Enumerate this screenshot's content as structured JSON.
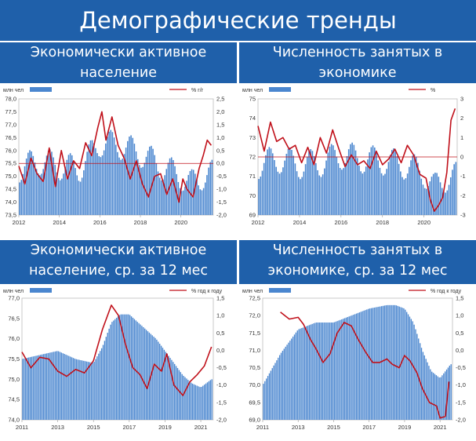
{
  "page": {
    "title": "Демографические тренды"
  },
  "colors": {
    "header_bg": "#1f60aa",
    "bar": "#4a86cf",
    "line": "#c0101a",
    "zero_line": "#c0101a"
  },
  "chart_data": [
    {
      "type": "bar+line",
      "title_lines": [
        "Экономически активное",
        "население"
      ],
      "left_unit": "млн чел",
      "right_unit": "% г/г",
      "ylim_left": [
        73.5,
        78.0
      ],
      "ylim_right": [
        -2.0,
        2.5
      ],
      "yticks_left": [
        "78,0",
        "77,5",
        "77,0",
        "76,5",
        "76,0",
        "75,5",
        "75,0",
        "74,5",
        "74,0",
        "73,5"
      ],
      "yticks_right": [
        "2,5",
        "2,0",
        "1,5",
        "1,0",
        "0,5",
        "0,0",
        "-0,5",
        "-1,0",
        "-1,5",
        "-2,0"
      ],
      "xlim": [
        2012,
        2021.6
      ],
      "xticks": [
        "2012",
        "2014",
        "2016",
        "2018",
        "2020"
      ],
      "zero_line": 0,
      "bars": {
        "x_start": 2012,
        "step": 0.0833,
        "seasonal_amp": 0.55,
        "trend_x": [
          2012,
          2013,
          2014,
          2015,
          2016,
          2017,
          2018,
          2019,
          2020,
          2020.5,
          2021,
          2021.6
        ],
        "trend_y": [
          75.3,
          75.6,
          75.4,
          75.3,
          76.3,
          76.2,
          75.9,
          75.4,
          75.0,
          74.7,
          75.0,
          75.1
        ]
      },
      "line": {
        "x": [
          2012,
          2012.3,
          2012.6,
          2012.9,
          2013.2,
          2013.5,
          2013.8,
          2014.1,
          2014.4,
          2014.7,
          2015.0,
          2015.3,
          2015.6,
          2015.9,
          2016.1,
          2016.3,
          2016.6,
          2016.9,
          2017.2,
          2017.5,
          2017.8,
          2018.1,
          2018.4,
          2018.7,
          2019.0,
          2019.3,
          2019.6,
          2019.9,
          2020.1,
          2020.3,
          2020.6,
          2020.9,
          2021.1,
          2021.3,
          2021.5
        ],
        "y": [
          -0.1,
          -0.8,
          0.2,
          -0.4,
          -0.7,
          0.6,
          -0.9,
          0.5,
          -0.6,
          0.1,
          -0.2,
          0.8,
          0.3,
          1.4,
          2.0,
          0.9,
          1.8,
          0.7,
          0.2,
          -0.6,
          0.1,
          -0.8,
          -1.3,
          -0.5,
          -0.4,
          -1.2,
          -0.6,
          -1.5,
          -0.6,
          -1.0,
          -1.3,
          -0.2,
          0.3,
          0.9,
          0.7
        ]
      }
    },
    {
      "type": "bar+line",
      "title_lines": [
        "Численность занятых в",
        "экономике"
      ],
      "left_unit": "млн чел",
      "right_unit": "%",
      "ylim_left": [
        69,
        75
      ],
      "ylim_right": [
        -3,
        3
      ],
      "yticks_left": [
        "75",
        "74",
        "73",
        "72",
        "71",
        "70",
        "69"
      ],
      "yticks_right": [
        "3",
        "2",
        "1",
        "0",
        "-1",
        "-2",
        "-3"
      ],
      "xlim": [
        2012,
        2021.6
      ],
      "xticks": [
        "2012",
        "2014",
        "2016",
        "2018",
        "2020"
      ],
      "zero_line": 0,
      "bars": {
        "x_start": 2012,
        "step": 0.0833,
        "seasonal_amp": 0.75,
        "trend_x": [
          2012,
          2013,
          2014,
          2015,
          2016,
          2017,
          2018,
          2019,
          2020,
          2020.5,
          2021,
          2021.6
        ],
        "trend_y": [
          71.6,
          71.9,
          71.6,
          71.7,
          72.1,
          71.9,
          71.8,
          71.6,
          71.2,
          70.4,
          70.9,
          71.0
        ]
      },
      "line": {
        "x": [
          2012,
          2012.3,
          2012.6,
          2012.9,
          2013.2,
          2013.5,
          2013.8,
          2014.1,
          2014.4,
          2014.7,
          2015.0,
          2015.3,
          2015.6,
          2015.9,
          2016.2,
          2016.5,
          2016.8,
          2017.1,
          2017.4,
          2017.7,
          2018.0,
          2018.3,
          2018.6,
          2018.9,
          2019.2,
          2019.5,
          2019.8,
          2020.1,
          2020.3,
          2020.5,
          2020.7,
          2020.9,
          2021.1,
          2021.3,
          2021.5
        ],
        "y": [
          1.6,
          0.3,
          1.8,
          0.8,
          1.0,
          0.4,
          0.6,
          -0.3,
          0.5,
          -0.4,
          1.0,
          0.2,
          1.4,
          0.4,
          -0.5,
          0.1,
          -0.4,
          -0.2,
          -0.6,
          0.3,
          -0.4,
          -0.1,
          0.4,
          -0.3,
          0.6,
          0.1,
          -0.9,
          -1.1,
          -2.2,
          -2.8,
          -2.5,
          -2.1,
          -0.8,
          1.9,
          2.5
        ]
      }
    },
    {
      "type": "bar+line",
      "title_lines": [
        "Экономически активное",
        "население, ср. за 12 мес"
      ],
      "left_unit": "млн чел",
      "right_unit": "% год к году",
      "ylim_left": [
        74.0,
        77.0
      ],
      "ylim_right": [
        -2.0,
        1.5
      ],
      "yticks_left": [
        "77,0",
        "76,5",
        "76,0",
        "75,5",
        "75,0",
        "74,5",
        "74,0"
      ],
      "yticks_right": [
        "1,5",
        "1,0",
        "0,5",
        "0,0",
        "-0,5",
        "-1,0",
        "-1,5",
        "-2,0"
      ],
      "xlim": [
        2011,
        2021.7
      ],
      "xticks": [
        "2011",
        "2013",
        "2015",
        "2017",
        "2019",
        "2021"
      ],
      "zero_line": null,
      "bars": {
        "x_start": 2011,
        "step": 0.0833,
        "seasonal_amp": 0,
        "trend_x": [
          2011,
          2012,
          2013,
          2014,
          2015,
          2015.5,
          2016,
          2016.5,
          2017,
          2018,
          2018.5,
          2019,
          2019.5,
          2020,
          2020.5,
          2021,
          2021.6
        ],
        "trend_y": [
          75.5,
          75.6,
          75.7,
          75.5,
          75.4,
          75.8,
          76.4,
          76.6,
          76.6,
          76.2,
          76.0,
          75.7,
          75.4,
          75.1,
          74.9,
          74.8,
          75.0
        ]
      },
      "line": {
        "x": [
          2011,
          2011.5,
          2012,
          2012.5,
          2013,
          2013.5,
          2014,
          2014.5,
          2015,
          2015.5,
          2016,
          2016.4,
          2016.8,
          2017.2,
          2017.6,
          2018,
          2018.4,
          2018.8,
          2019.1,
          2019.5,
          2020,
          2020.4,
          2020.8,
          2021.2,
          2021.6
        ],
        "y": [
          -0.05,
          -0.5,
          -0.2,
          -0.25,
          -0.6,
          -0.75,
          -0.55,
          -0.65,
          -0.3,
          0.6,
          1.3,
          1.0,
          0.15,
          -0.5,
          -0.7,
          -1.1,
          -0.4,
          -0.6,
          -0.1,
          -1.0,
          -1.3,
          -0.9,
          -0.7,
          -0.45,
          0.1
        ]
      }
    },
    {
      "type": "bar+line",
      "title_lines": [
        "Численность занятых в",
        "экономике, ср. за 12 мес"
      ],
      "left_unit": "млн чел",
      "right_unit": "% год к году",
      "ylim_left": [
        69.0,
        72.5
      ],
      "ylim_right": [
        -2.0,
        1.5
      ],
      "yticks_left": [
        "72,5",
        "72,0",
        "71,5",
        "71,0",
        "70,5",
        "70,0",
        "69,5",
        "69,0"
      ],
      "yticks_right": [
        "1,5",
        "1,0",
        "0,5",
        "0,0",
        "-0,5",
        "-1,0",
        "-1,5",
        "-2,0"
      ],
      "xlim": [
        2011,
        2021.7
      ],
      "xticks": [
        "2011",
        "2013",
        "2015",
        "2017",
        "2019",
        "2021"
      ],
      "zero_line": null,
      "bars": {
        "x_start": 2011,
        "step": 0.0833,
        "seasonal_amp": 0,
        "trend_x": [
          2011,
          2012,
          2013,
          2014,
          2015,
          2016,
          2017,
          2018,
          2018.5,
          2019,
          2019.5,
          2020,
          2020.5,
          2021,
          2021.6
        ],
        "trend_y": [
          70.0,
          70.9,
          71.6,
          71.8,
          71.8,
          72.0,
          72.2,
          72.3,
          72.3,
          72.2,
          71.8,
          71.0,
          70.4,
          70.2,
          70.6
        ]
      },
      "line": {
        "x": [
          2012,
          2012.5,
          2013,
          2013.3,
          2013.7,
          2014,
          2014.4,
          2014.8,
          2015.2,
          2015.6,
          2016,
          2016.4,
          2016.8,
          2017.2,
          2017.6,
          2018,
          2018.3,
          2018.7,
          2019,
          2019.3,
          2019.7,
          2020,
          2020.4,
          2020.8,
          2021,
          2021.3,
          2021.5
        ],
        "y": [
          1.1,
          0.9,
          0.95,
          0.75,
          0.3,
          0.05,
          -0.35,
          -0.1,
          0.5,
          0.8,
          0.7,
          0.3,
          -0.05,
          -0.35,
          -0.35,
          -0.25,
          -0.4,
          -0.5,
          -0.15,
          -0.3,
          -0.65,
          -1.1,
          -1.5,
          -1.6,
          -1.95,
          -1.9,
          -0.9
        ]
      }
    }
  ]
}
